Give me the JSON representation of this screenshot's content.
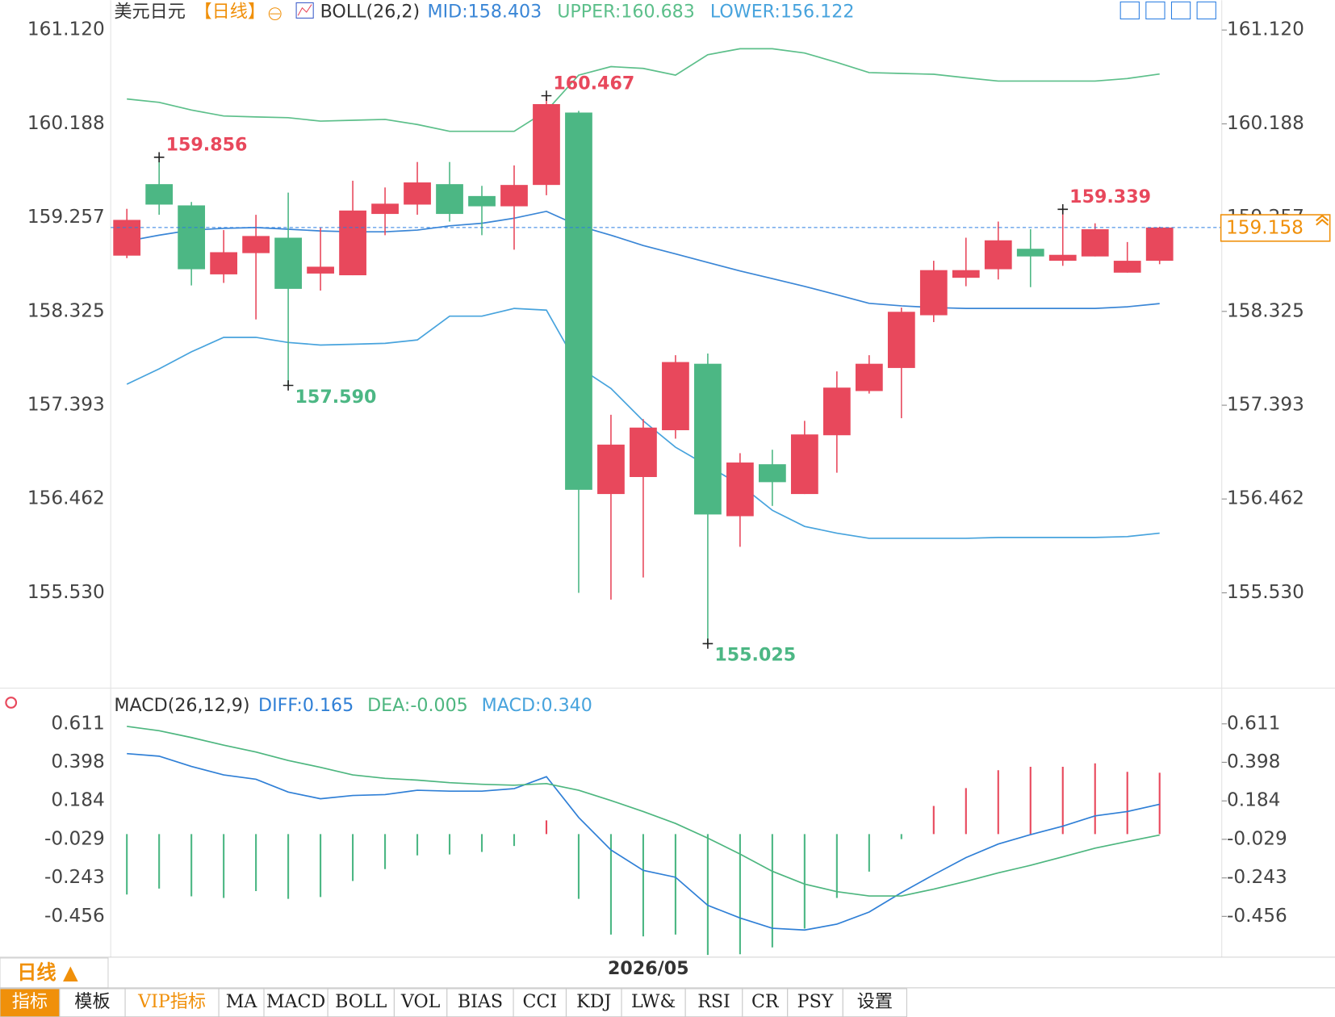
{
  "header": {
    "symbol": "美元日元",
    "period": "【日线】",
    "indicator": "BOLL(26,2)"
  },
  "period_button": "日线 ▲",
  "tabs": [
    "指标",
    "模板",
    "VIP指标",
    "MA",
    "MACD",
    "BOLL",
    "VOL",
    "BIAS",
    "CCI",
    "KDJ",
    "LW&",
    "RSI",
    "CR",
    "PSY",
    "设置"
  ],
  "chart_data": [
    {
      "type": "candlestick",
      "categories": [
        null,
        null,
        null,
        null,
        null,
        null,
        null,
        null,
        null,
        null,
        null,
        null,
        null,
        null,
        null,
        null,
        "2026/05",
        null,
        null,
        null,
        null,
        null,
        null,
        null,
        null,
        null,
        null,
        null,
        null,
        null,
        null,
        null,
        null
      ],
      "open": [
        158.879,
        159.589,
        159.378,
        158.693,
        158.904,
        159.057,
        158.701,
        158.684,
        159.293,
        159.386,
        159.589,
        159.471,
        159.369,
        159.581,
        160.3,
        156.511,
        156.68,
        157.145,
        157.805,
        156.291,
        156.807,
        156.511,
        157.095,
        157.534,
        157.763,
        158.287,
        158.659,
        158.744,
        158.947,
        158.828,
        158.871,
        158.71,
        158.828
      ],
      "high": [
        159.344,
        159.856,
        159.412,
        159.133,
        159.285,
        159.505,
        159.158,
        159.623,
        159.556,
        159.809,
        159.809,
        159.572,
        159.775,
        160.467,
        160.317,
        157.298,
        157.255,
        157.89,
        157.907,
        156.917,
        156.951,
        157.238,
        157.729,
        157.89,
        158.363,
        158.828,
        159.057,
        159.217,
        159.141,
        159.339,
        159.2,
        159.014,
        159.166
      ],
      "low": [
        158.854,
        159.285,
        158.583,
        158.608,
        158.245,
        157.59,
        158.532,
        158.684,
        159.082,
        159.285,
        159.217,
        159.082,
        158.938,
        159.479,
        155.53,
        155.462,
        155.682,
        157.061,
        155.025,
        155.987,
        156.393,
        156.511,
        156.723,
        157.509,
        157.264,
        158.219,
        158.575,
        158.642,
        158.566,
        158.777,
        158.871,
        158.71,
        158.794
      ],
      "close": [
        159.234,
        159.386,
        158.744,
        158.913,
        159.074,
        158.549,
        158.769,
        159.327,
        159.395,
        159.606,
        159.293,
        159.369,
        159.581,
        160.384,
        156.553,
        157.002,
        157.171,
        157.822,
        156.308,
        156.824,
        156.629,
        157.103,
        157.568,
        157.805,
        158.321,
        158.735,
        158.735,
        159.031,
        158.871,
        158.887,
        159.141,
        158.828,
        159.158
      ],
      "up_color": "#e8485c",
      "down_color": "#4cb784",
      "series": [
        {
          "name": "MID:158.403",
          "color": "#3a86d6",
          "values": [
            159.023,
            159.082,
            159.133,
            159.15,
            159.158,
            159.141,
            159.124,
            159.116,
            159.116,
            159.133,
            159.175,
            159.2,
            159.251,
            159.319,
            159.175,
            159.082,
            158.98,
            158.896,
            158.811,
            158.727,
            158.651,
            158.574,
            158.49,
            158.405,
            158.38,
            158.363,
            158.355,
            158.355,
            158.355,
            158.355,
            158.355,
            158.371,
            158.403
          ]
        },
        {
          "name": "UPPER:160.683",
          "color": "#5cbf8a",
          "values": [
            160.435,
            160.401,
            160.325,
            160.266,
            160.257,
            160.249,
            160.215,
            160.224,
            160.232,
            160.181,
            160.114,
            160.114,
            160.114,
            160.317,
            160.672,
            160.756,
            160.739,
            160.672,
            160.875,
            160.934,
            160.934,
            160.892,
            160.799,
            160.697,
            160.689,
            160.68,
            160.646,
            160.613,
            160.613,
            160.613,
            160.613,
            160.638,
            160.683
          ]
        },
        {
          "name": "LOWER:156.122",
          "color": "#47a3dd",
          "values": [
            157.602,
            157.754,
            157.923,
            158.067,
            158.067,
            158.016,
            157.991,
            157.999,
            158.008,
            158.042,
            158.278,
            158.278,
            158.355,
            158.338,
            157.771,
            157.56,
            157.238,
            156.976,
            156.79,
            156.604,
            156.35,
            156.19,
            156.122,
            156.071,
            156.071,
            156.071,
            156.071,
            156.08,
            156.08,
            156.08,
            156.08,
            156.088,
            156.122
          ]
        }
      ],
      "annotations": [
        {
          "value": 159.856,
          "label": "159.856"
        },
        {
          "value": 160.467,
          "label": "160.467"
        },
        {
          "value": 157.59,
          "label": "157.590"
        },
        {
          "value": 155.025,
          "label": "155.025"
        },
        {
          "value": 159.339,
          "label": "159.339"
        }
      ],
      "last_price": 159.158,
      "last_price_color": "#f0900a",
      "ylim": [
        154.583,
        161.416
      ],
      "yticks": [
        {
          "value": 161.12,
          "label": "161.120"
        },
        160.188,
        159.257,
        158.325,
        157.393,
        156.462,
        {
          "value": 155.53,
          "label": "155.530"
        }
      ]
    },
    {
      "type": "macd",
      "indicator": "MACD(26,12,9)",
      "series": [
        {
          "name": "DIFF:0.165",
          "color": "#2f7fd6",
          "values": [
            0.446,
            0.432,
            0.375,
            0.328,
            0.304,
            0.233,
            0.196,
            0.214,
            0.219,
            0.243,
            0.238,
            0.238,
            0.252,
            0.318,
            0.092,
            -0.088,
            -0.201,
            -0.239,
            -0.395,
            -0.465,
            -0.522,
            -0.532,
            -0.499,
            -0.432,
            -0.324,
            -0.225,
            -0.13,
            -0.055,
            -0.003,
            0.044,
            0.101,
            0.125,
            0.165
          ]
        },
        {
          "name": "DEA:-0.005",
          "color": "#4db67f",
          "values": [
            0.597,
            0.573,
            0.535,
            0.493,
            0.455,
            0.408,
            0.37,
            0.328,
            0.309,
            0.299,
            0.285,
            0.276,
            0.271,
            0.28,
            0.243,
            0.186,
            0.125,
            0.059,
            -0.022,
            -0.111,
            -0.206,
            -0.277,
            -0.319,
            -0.343,
            -0.343,
            -0.305,
            -0.262,
            -0.215,
            -0.173,
            -0.126,
            -0.078,
            -0.041,
            -0.005
          ]
        }
      ],
      "histogram": {
        "name": "MACD:0.340",
        "color": "#47a3dd",
        "up_color": "#e8485c",
        "down_color": "#4cb784",
        "values": [
          -0.335,
          -0.302,
          -0.345,
          -0.354,
          -0.316,
          -0.359,
          -0.349,
          -0.26,
          -0.194,
          -0.118,
          -0.113,
          -0.099,
          -0.066,
          0.076,
          -0.359,
          -0.557,
          -0.567,
          -0.557,
          -0.67,
          -0.666,
          -0.628,
          -0.524,
          -0.354,
          -0.208,
          -0.028,
          0.156,
          0.255,
          0.354,
          0.373,
          0.373,
          0.392,
          0.345,
          0.34
        ]
      },
      "ylim": [
        -0.654,
        0.79
      ],
      "yticks": [
        0.611,
        0.398,
        0.184,
        -0.029,
        -0.243,
        -0.456
      ]
    }
  ]
}
